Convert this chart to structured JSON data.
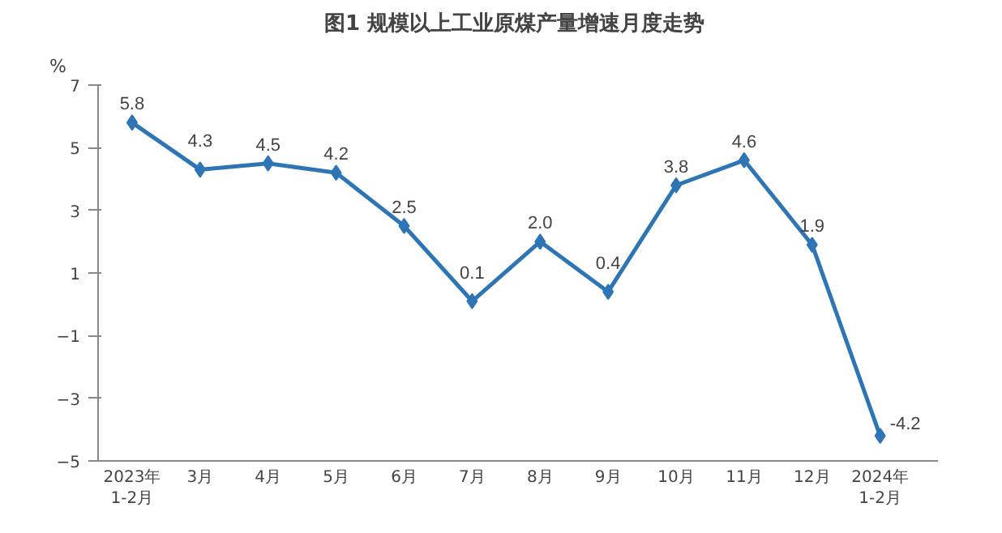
{
  "chart_data": {
    "type": "line",
    "title": "图1  规模以上工业原煤产量增速月度走势",
    "ylabel": "%",
    "categories": [
      "2023年\n1-2月",
      "3月",
      "4月",
      "5月",
      "6月",
      "7月",
      "8月",
      "9月",
      "10月",
      "11月",
      "12月",
      "2024年\n1-2月"
    ],
    "series": [
      {
        "color": "#2e75b6",
        "values": [
          5.8,
          4.3,
          4.5,
          4.2,
          2.5,
          0.1,
          2.0,
          0.4,
          3.8,
          4.6,
          1.9,
          -4.2
        ],
        "value_labels": [
          "5.8",
          "4.3",
          "4.5",
          "4.2",
          "2.5",
          "0.1",
          "2.0",
          "0.4",
          "3.8",
          "4.6",
          "1.9",
          "-4.2"
        ]
      }
    ],
    "ylim": [
      -5,
      7
    ],
    "yticks": [
      -5,
      -3,
      -1,
      1,
      3,
      5,
      7
    ],
    "marker": "diamond",
    "line_style": "solid",
    "grid": false
  }
}
